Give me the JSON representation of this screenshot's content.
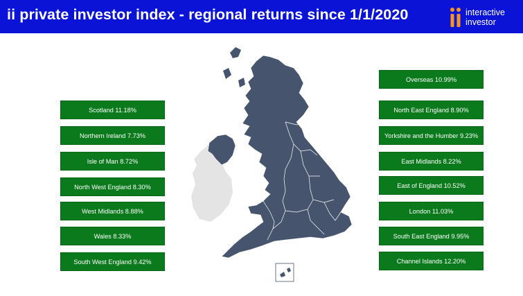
{
  "header": {
    "title": "ii private investor index - regional returns since 1/1/2020",
    "logo_line1": "interactive",
    "logo_line2": "investor",
    "background": "#0b14d6"
  },
  "colors": {
    "tag_fill": "#0a7a1c",
    "map_fill": "#46546e",
    "ireland_fill": "#e4e4e4"
  },
  "left_regions": [
    "Scotland 11.18%",
    "Northern Ireland 7.73%",
    "Isle of Man 8.72%",
    "North West England 8.30%",
    "West Midlands 8.88%",
    "Wales 8.33%",
    "South West England 9.42%"
  ],
  "right_regions": [
    "Overseas 10.99%",
    "North East England 8.90%",
    "Yorkshire and the Humber 9.23%",
    "East Midlands 8.22%",
    "East of England 10.52%",
    "London 11.03%",
    "South East England 9.95%",
    "Channel Islands 12.20%"
  ]
}
